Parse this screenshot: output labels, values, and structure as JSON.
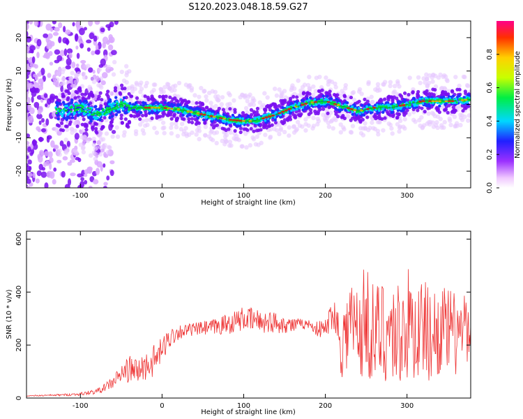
{
  "figure_title": "S120.2023.048.18.59.G27",
  "chart_data": [
    {
      "type": "heatmap",
      "title": "S120.2023.048.18.59.G27",
      "xlabel": "Height of straight line (km)",
      "ylabel": "Frequency (Hz)",
      "xlim": [
        -166,
        378
      ],
      "ylim": [
        -25,
        25
      ],
      "xticks": [
        -100,
        0,
        100,
        200,
        300
      ],
      "yticks": [
        -20,
        -10,
        0,
        10,
        20
      ],
      "ridge": {
        "x": [
          -120,
          -100,
          -80,
          -60,
          -50,
          -40,
          -20,
          0,
          20,
          40,
          60,
          80,
          100,
          110,
          120,
          140,
          160,
          180,
          200,
          220,
          240,
          260,
          280,
          300,
          320,
          340,
          360,
          378
        ],
        "y": [
          -2,
          -1,
          -3,
          -1,
          0,
          -1,
          -1,
          -1,
          -1.5,
          -2.5,
          -3.5,
          -4.5,
          -5,
          -5,
          -4.5,
          -3,
          -1,
          0.5,
          1,
          -0.5,
          -2,
          -1,
          -1,
          0,
          1,
          1,
          1,
          1.5
        ]
      },
      "colorbar": {
        "label": "Normalized spectral amplitude",
        "ticks": [
          "0.0",
          "0.2",
          "0.4",
          "0.6",
          "0.8"
        ],
        "range": [
          0,
          1
        ]
      },
      "grid": false
    },
    {
      "type": "line",
      "xlabel": "Height of straight line (km)",
      "ylabel": "SNR (10 * v/v)",
      "xlim": [
        -166,
        378
      ],
      "ylim": [
        0,
        630
      ],
      "xticks": [
        -100,
        0,
        100,
        200,
        300
      ],
      "yticks": [
        0,
        200,
        400,
        600
      ],
      "color": "#ee3333",
      "series": [
        {
          "x": [
            -166,
            -140,
            -120,
            -100,
            -80,
            -70,
            -60,
            -50,
            -40,
            -30,
            -20,
            -10,
            0,
            10,
            20,
            30,
            40,
            60,
            80,
            100,
            120,
            140,
            160,
            180,
            185,
            190,
            200,
            210,
            220,
            230,
            240,
            250,
            260,
            270,
            280,
            290,
            300,
            310,
            320,
            330,
            340,
            350,
            360,
            370,
            378
          ],
          "y": [
            8,
            10,
            12,
            15,
            25,
            40,
            60,
            90,
            110,
            100,
            120,
            140,
            180,
            230,
            250,
            255,
            260,
            265,
            280,
            300,
            290,
            285,
            275,
            280,
            270,
            260,
            260,
            330,
            200,
            290,
            250,
            300,
            230,
            260,
            250,
            240,
            280,
            250,
            270,
            230,
            260,
            250,
            240,
            250,
            210
          ],
          "spread": [
            2,
            3,
            4,
            6,
            10,
            15,
            25,
            40,
            50,
            50,
            55,
            60,
            50,
            40,
            30,
            25,
            25,
            30,
            40,
            45,
            45,
            40,
            30,
            15,
            20,
            30,
            40,
            60,
            130,
            180,
            200,
            220,
            200,
            200,
            200,
            210,
            220,
            200,
            190,
            180,
            170,
            170,
            160,
            160,
            80
          ]
        }
      ],
      "grid": false
    }
  ]
}
